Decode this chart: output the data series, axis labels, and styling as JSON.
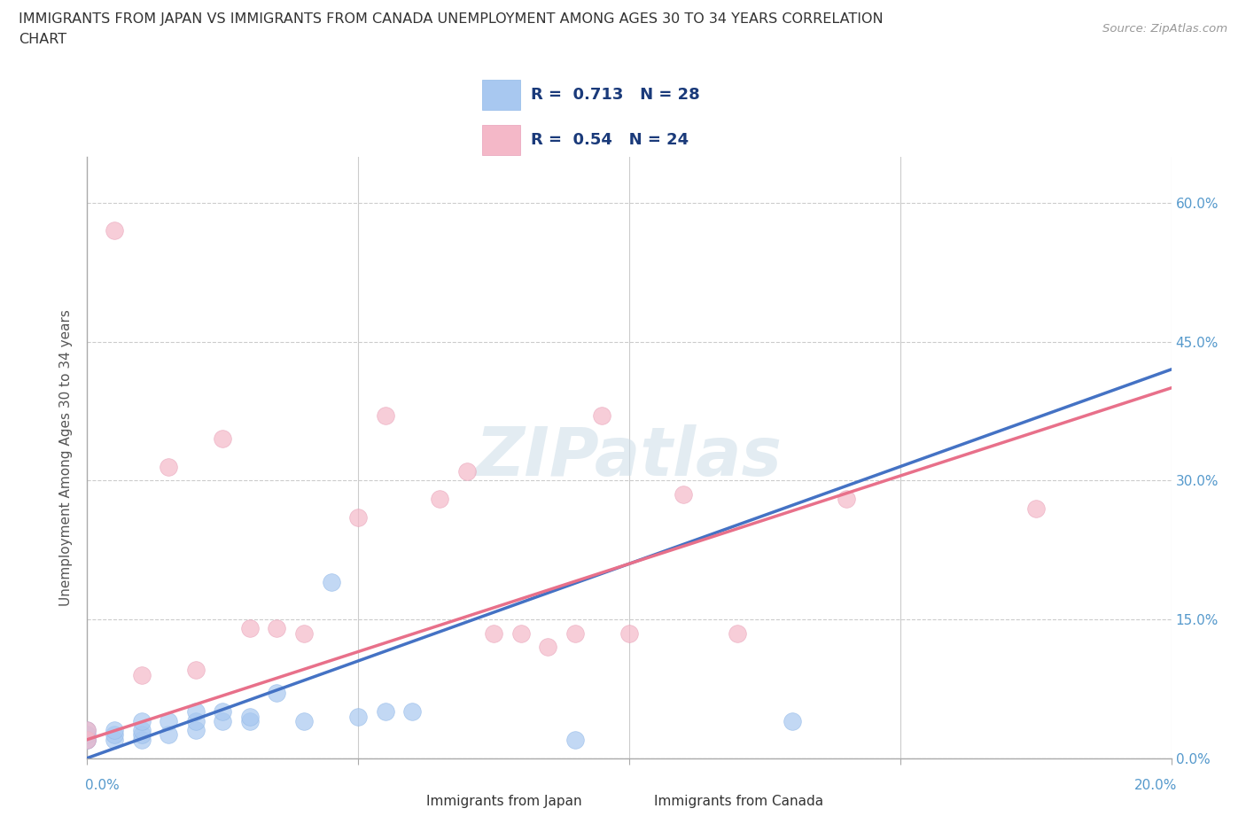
{
  "title_line1": "IMMIGRANTS FROM JAPAN VS IMMIGRANTS FROM CANADA UNEMPLOYMENT AMONG AGES 30 TO 34 YEARS CORRELATION",
  "title_line2": "CHART",
  "source": "Source: ZipAtlas.com",
  "ylabel": "Unemployment Among Ages 30 to 34 years",
  "xlim": [
    0.0,
    0.2
  ],
  "ylim": [
    0.0,
    0.65
  ],
  "yticks": [
    0.0,
    0.15,
    0.3,
    0.45,
    0.6
  ],
  "ytick_labels": [
    "0.0%",
    "15.0%",
    "30.0%",
    "45.0%",
    "60.0%"
  ],
  "xtick_labels_shown": [
    "0.0%",
    "20.0%"
  ],
  "R_japan": 0.713,
  "N_japan": 28,
  "R_canada": 0.54,
  "N_canada": 24,
  "japan_color": "#a8c8f0",
  "canada_color": "#f4b8c8",
  "japan_line_color": "#4472c4",
  "canada_line_color": "#e8708a",
  "watermark": "ZIPatlas",
  "japan_x": [
    0.0,
    0.0,
    0.0,
    0.0,
    0.005,
    0.005,
    0.005,
    0.01,
    0.01,
    0.01,
    0.01,
    0.015,
    0.015,
    0.02,
    0.02,
    0.02,
    0.025,
    0.025,
    0.03,
    0.03,
    0.035,
    0.04,
    0.045,
    0.05,
    0.055,
    0.06,
    0.09,
    0.13
  ],
  "japan_y": [
    0.02,
    0.02,
    0.025,
    0.03,
    0.02,
    0.025,
    0.03,
    0.02,
    0.025,
    0.03,
    0.04,
    0.025,
    0.04,
    0.03,
    0.04,
    0.05,
    0.04,
    0.05,
    0.04,
    0.045,
    0.07,
    0.04,
    0.19,
    0.045,
    0.05,
    0.05,
    0.02,
    0.04
  ],
  "canada_x": [
    0.0,
    0.0,
    0.005,
    0.01,
    0.015,
    0.02,
    0.025,
    0.03,
    0.035,
    0.04,
    0.05,
    0.055,
    0.065,
    0.07,
    0.075,
    0.08,
    0.085,
    0.09,
    0.095,
    0.1,
    0.11,
    0.12,
    0.14,
    0.175
  ],
  "canada_y": [
    0.02,
    0.03,
    0.57,
    0.09,
    0.315,
    0.095,
    0.345,
    0.14,
    0.14,
    0.135,
    0.26,
    0.37,
    0.28,
    0.31,
    0.135,
    0.135,
    0.12,
    0.135,
    0.37,
    0.135,
    0.285,
    0.135,
    0.28,
    0.27
  ],
  "japan_line_x0": 0.0,
  "japan_line_y0": 0.0,
  "japan_line_x1": 0.2,
  "japan_line_y1": 0.42,
  "canada_line_x0": 0.0,
  "canada_line_y0": 0.02,
  "canada_line_x1": 0.2,
  "canada_line_y1": 0.4
}
